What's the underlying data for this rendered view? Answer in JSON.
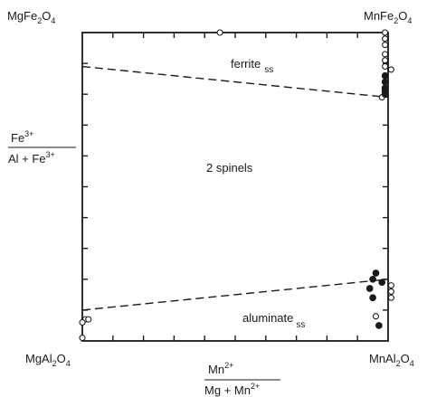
{
  "corners": {
    "top_left": {
      "base": "MgFe",
      "sub1": "2",
      "mid": "O",
      "sub2": "4"
    },
    "top_right": {
      "base": "MnFe",
      "sub1": "2",
      "mid": "O",
      "sub2": "4"
    },
    "bottom_left": {
      "base": "MgAl",
      "sub1": "2",
      "mid": "O",
      "sub2": "4"
    },
    "bottom_right": {
      "base": "MnAl",
      "sub1": "2",
      "mid": "O",
      "sub2": "4"
    }
  },
  "y_axis": {
    "numerator": {
      "base": "Fe",
      "sup": "3+"
    },
    "denominator": {
      "a": "Al + Fe",
      "sup": "3+"
    }
  },
  "x_axis": {
    "numerator": {
      "base": "Mn",
      "sup": "2+"
    },
    "denominator": {
      "a": "Mg + Mn",
      "sup": "2+"
    }
  },
  "regions": {
    "top": {
      "base": "ferrite",
      "sub": "ss"
    },
    "middle": "2 spinels",
    "bottom": {
      "base": "aluminate",
      "sub": "ss"
    }
  },
  "chart_data": {
    "type": "scatter",
    "xlabel": "Mn2+ / (Mg + Mn2+)",
    "ylabel": "Fe3+ / (Al + Fe3+)",
    "xlim": [
      0,
      1
    ],
    "ylim": [
      0,
      1
    ],
    "boundaries": [
      {
        "style": "dashed",
        "x": [
          0,
          1
        ],
        "y": [
          0.89,
          0.79
        ]
      },
      {
        "style": "dashed",
        "x": [
          0,
          1
        ],
        "y": [
          0.1,
          0.2
        ]
      }
    ],
    "series": [
      {
        "marker": "open-circle",
        "points": [
          [
            0.45,
            1.0
          ],
          [
            0.99,
            1.0
          ],
          [
            0.99,
            0.98
          ],
          [
            0.99,
            0.96
          ],
          [
            0.99,
            0.93
          ],
          [
            0.99,
            0.91
          ],
          [
            0.99,
            0.89
          ],
          [
            1.01,
            0.88
          ],
          [
            0.98,
            0.79
          ],
          [
            1.01,
            0.18
          ],
          [
            1.01,
            0.16
          ],
          [
            1.01,
            0.14
          ],
          [
            0.96,
            0.08
          ],
          [
            0.01,
            0.07
          ],
          [
            0.02,
            0.07
          ],
          [
            0.0,
            0.06
          ],
          [
            0.0,
            0.01
          ]
        ]
      },
      {
        "marker": "filled-circle",
        "points": [
          [
            0.99,
            0.84
          ],
          [
            0.99,
            0.86
          ],
          [
            0.99,
            0.82
          ],
          [
            0.99,
            0.81
          ],
          [
            0.99,
            0.8
          ],
          [
            0.96,
            0.22
          ],
          [
            0.95,
            0.2
          ],
          [
            0.98,
            0.19
          ],
          [
            0.94,
            0.17
          ],
          [
            0.95,
            0.14
          ],
          [
            0.97,
            0.05
          ]
        ]
      }
    ]
  }
}
